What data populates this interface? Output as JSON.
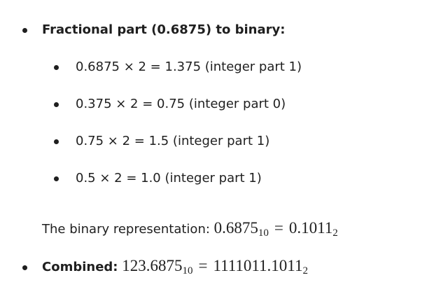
{
  "list": [
    {
      "title": "Fractional part (0.6875) to binary:",
      "steps": [
        "0.6875 × 2 = 1.375 (integer part 1)",
        "0.375 × 2 = 0.75 (integer part 0)",
        "0.75 × 2 = 1.5 (integer part 1)",
        "0.5 × 2 = 1.0 (integer part 1)"
      ],
      "note": {
        "text": "The binary representation:",
        "math": {
          "lhs": "0.6875",
          "lhs_base": "10",
          "rel": "=",
          "rhs": "0.1011",
          "rhs_base": "2"
        }
      }
    },
    {
      "title": "Combined:",
      "math": {
        "lhs": "123.6875",
        "lhs_base": "10",
        "rel": "=",
        "rhs": "1111011.1011",
        "rhs_base": "2"
      }
    }
  ]
}
